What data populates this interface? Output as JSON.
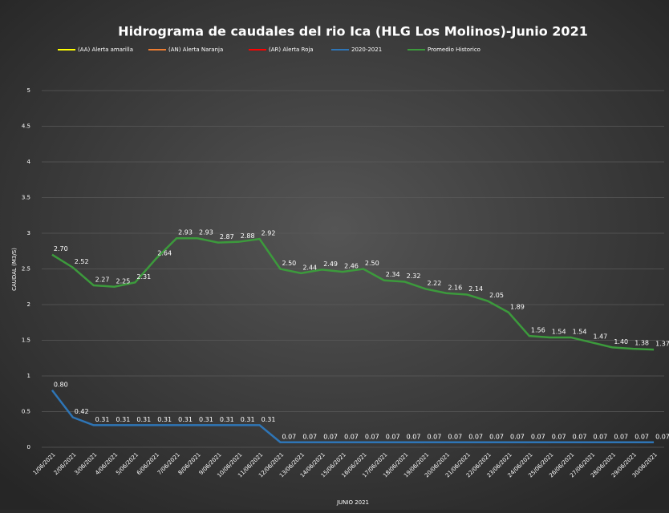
{
  "chart_data": {
    "type": "line",
    "title": "Hidrograma de caudales del rio Ica (HLG Los Molinos)-Junio 2021",
    "ylabel": "CAUDAL (M3/S)",
    "xlabel": "JUNIO 2021",
    "categories": [
      "1/06/2021",
      "2/06/2021",
      "3/06/2021",
      "4/06/2021",
      "5/06/2021",
      "6/06/2021",
      "7/06/2021",
      "8/06/2021",
      "9/06/2021",
      "10/06/2021",
      "11/06/2021",
      "12/06/2021",
      "13/06/2021",
      "14/06/2021",
      "15/06/2021",
      "16/06/2021",
      "17/06/2021",
      "18/06/2021",
      "19/06/2021",
      "20/06/2021",
      "21/06/2021",
      "22/06/2021",
      "23/06/2021",
      "24/06/2021",
      "25/06/2021",
      "26/06/2021",
      "27/06/2021",
      "28/06/2021",
      "29/06/2021",
      "30/06/2021"
    ],
    "ylim": [
      0,
      5
    ],
    "yticks": [
      0,
      0.5,
      1,
      1.5,
      2,
      2.5,
      3,
      3.5,
      4,
      4.5,
      5
    ],
    "legend": "top",
    "series": [
      {
        "name": "(AA) Alerta amarilla",
        "color": "#ffff00"
      },
      {
        "name": "(AN) Alerta Naranja",
        "color": "#ed7d31"
      },
      {
        "name": "(AR) Alerta Roja",
        "color": "#ff0000"
      },
      {
        "name": "2020-2021",
        "color": "#2e75b6",
        "values": [
          0.8,
          0.42,
          0.31,
          0.31,
          0.31,
          0.31,
          0.31,
          0.31,
          0.31,
          0.31,
          0.31,
          0.07,
          0.07,
          0.07,
          0.07,
          0.07,
          0.07,
          0.07,
          0.07,
          0.07,
          0.07,
          0.07,
          0.07,
          0.07,
          0.07,
          0.07,
          0.07,
          0.07,
          0.07,
          0.07
        ],
        "value_labels": [
          "0.80",
          "0.42",
          "0.31",
          "0.31",
          "0.31",
          "0.31",
          "0.31",
          "0.31",
          "0.31",
          "0.31",
          "0.31",
          "0.07",
          "0.07",
          "0.07",
          "0.07",
          "0.07",
          "0.07",
          "0.07",
          "0.07",
          "0.07",
          "0.07",
          "0.07",
          "0.07",
          "0.07",
          "0.07",
          "0.07",
          "0.07",
          "0.07",
          "0.07",
          "0.07"
        ]
      },
      {
        "name": "Promedio Historico",
        "color": "#3c9a3c",
        "values": [
          2.7,
          2.52,
          2.27,
          2.25,
          2.31,
          2.64,
          2.93,
          2.93,
          2.87,
          2.88,
          2.92,
          2.5,
          2.44,
          2.49,
          2.46,
          2.5,
          2.34,
          2.32,
          2.22,
          2.16,
          2.14,
          2.05,
          1.89,
          1.56,
          1.54,
          1.54,
          1.47,
          1.4,
          1.38,
          1.37
        ],
        "value_labels": [
          "2.70",
          "2.52",
          "2.27",
          "2.25",
          "2.31",
          "2.64",
          "2.93",
          "2.93",
          "2.87",
          "2.88",
          "2.92",
          "2.50",
          "2.44",
          "2.49",
          "2.46",
          "2.50",
          "2.34",
          "2.32",
          "2.22",
          "2.16",
          "2.14",
          "2.05",
          "1.89",
          "1.56",
          "1.54",
          "1.54",
          "1.47",
          "1.40",
          "1.38",
          "1.37"
        ]
      }
    ]
  }
}
